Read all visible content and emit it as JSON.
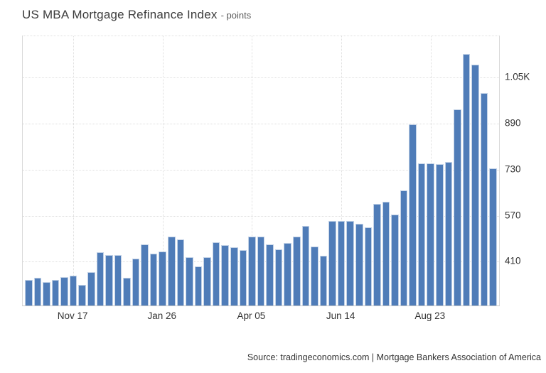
{
  "header": {
    "title": "US MBA Mortgage Refinance Index",
    "subtitle": "- points"
  },
  "footer": {
    "source": "Source: tradingeconomics.com | Mortgage Bankers Association of America"
  },
  "chart_data": {
    "type": "bar",
    "title": "US MBA Mortgage Refinance Index",
    "unit": "points",
    "values": [
      347,
      355,
      340,
      348,
      357,
      361,
      330,
      373,
      443,
      433,
      433,
      355,
      422,
      469,
      438,
      446,
      498,
      488,
      425,
      394,
      425,
      478,
      467,
      460,
      450,
      498,
      498,
      469,
      452,
      474,
      498,
      535,
      462,
      430,
      551,
      551,
      551,
      541,
      529,
      611,
      617,
      573,
      658,
      886,
      752,
      752,
      749,
      756,
      939,
      1132,
      1095,
      996,
      734
    ],
    "x_ticks": [
      {
        "index": 5,
        "label": "Nov 17"
      },
      {
        "index": 15,
        "label": "Jan 26"
      },
      {
        "index": 25,
        "label": "Apr 05"
      },
      {
        "index": 35,
        "label": "Jun 14"
      },
      {
        "index": 45,
        "label": "Aug 23"
      }
    ],
    "y_ticks": [
      {
        "value": 410,
        "label": "410"
      },
      {
        "value": 570,
        "label": "570"
      },
      {
        "value": 730,
        "label": "730"
      },
      {
        "value": 890,
        "label": "890"
      },
      {
        "value": 1050,
        "label": "1.05K"
      }
    ],
    "ylim": [
      258,
      1193
    ],
    "grid": "dotted",
    "legend_position": "none",
    "bar_color": "#4f7cb8",
    "xlabel": "",
    "ylabel": "",
    "source": "Source: tradingeconomics.com | Mortgage Bankers Association of America"
  }
}
